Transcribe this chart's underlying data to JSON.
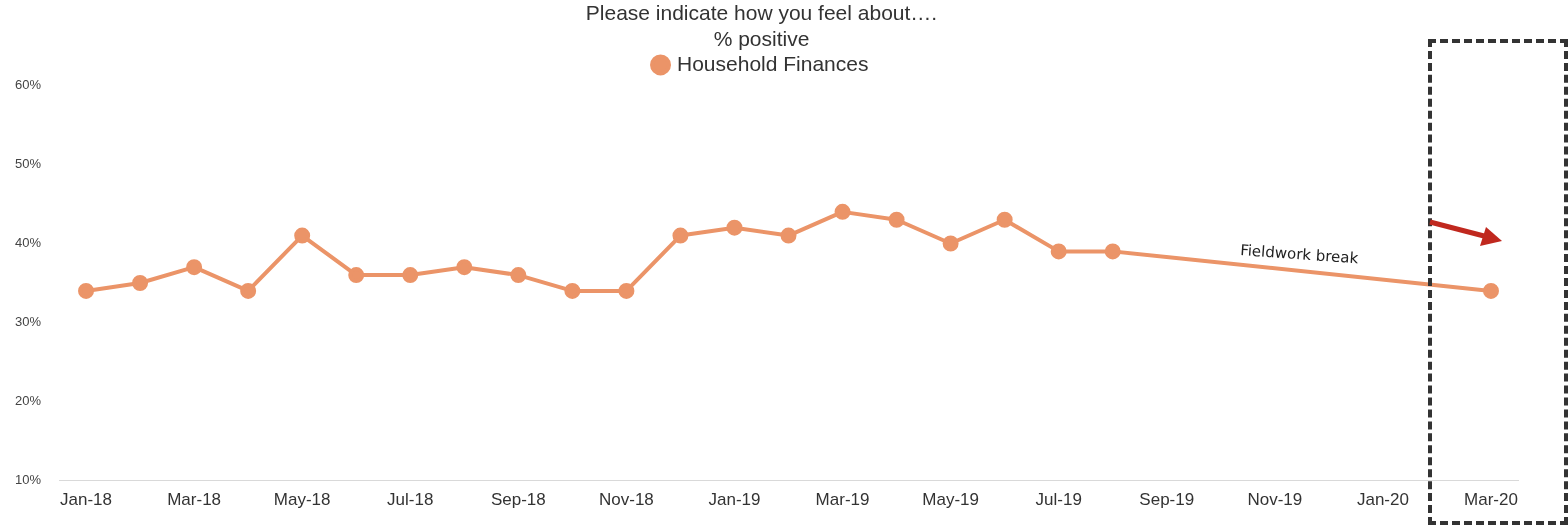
{
  "chart_data": {
    "type": "line",
    "title": "Please indicate how you feel about….",
    "subtitle": "% positive",
    "categories": [
      "Jan-18",
      null,
      "Mar-18",
      null,
      "May-18",
      null,
      "Jul-18",
      null,
      "Sep-18",
      null,
      "Nov-18",
      null,
      "Jan-19",
      null,
      "Mar-19",
      null,
      "May-19",
      null,
      "Jul-19",
      null,
      "Sep-19",
      null,
      "Nov-19",
      null,
      "Jan-20",
      null,
      "Mar-20"
    ],
    "series": [
      {
        "name": "Household Finances",
        "color": "#eb9468",
        "values": [
          34,
          35,
          37,
          34,
          41,
          36,
          36,
          37,
          36,
          34,
          34,
          41,
          42,
          41,
          44,
          43,
          40,
          43,
          39,
          39,
          null,
          null,
          null,
          null,
          null,
          null,
          34
        ]
      }
    ],
    "ylim": [
      10,
      60
    ],
    "yticks": [
      {
        "value": 10,
        "label": "10%"
      },
      {
        "value": 20,
        "label": "20%"
      },
      {
        "value": 30,
        "label": "30%"
      },
      {
        "value": 40,
        "label": "40%"
      },
      {
        "value": 50,
        "label": "50%"
      },
      {
        "value": 60,
        "label": "60%"
      }
    ],
    "grid": false,
    "legend": "top",
    "marker": "circle",
    "line_style": "solid",
    "annotations": [
      "Fieldwork break"
    ]
  }
}
